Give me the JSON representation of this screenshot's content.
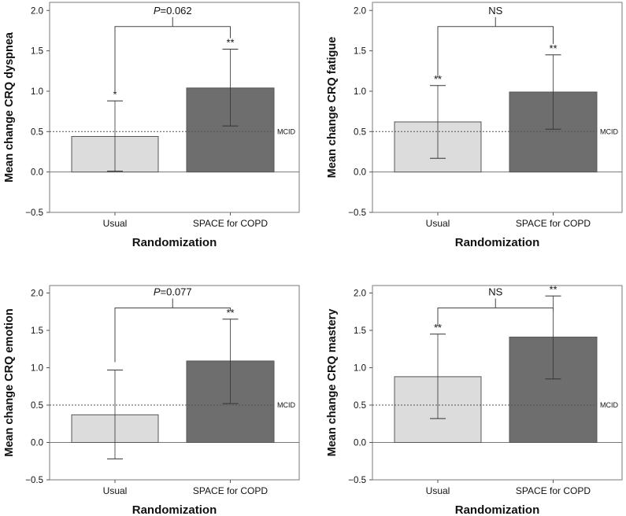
{
  "chart_data": [
    {
      "type": "bar",
      "ylabel": "Mean change CRQ dyspnea",
      "xlabel": "Randomization",
      "categories": [
        "Usual",
        "SPACE for COPD"
      ],
      "values": [
        0.44,
        1.04
      ],
      "error_low": [
        0.01,
        0.57
      ],
      "error_high": [
        0.88,
        1.52
      ],
      "bar_colors": [
        "#dcdcdc",
        "#6e6e6e"
      ],
      "significance": [
        "*",
        "**"
      ],
      "comparison": {
        "prefix": "P",
        "rest": "=0.062"
      },
      "mcid": {
        "value": 0.5,
        "label": "MCID"
      },
      "ylim": [
        -0.5,
        2.1
      ],
      "yticks": [
        -0.5,
        0.0,
        0.5,
        1.0,
        1.5,
        2.0
      ],
      "ytick_labels": [
        "−0.5",
        "0.0",
        "0.5",
        "1.0",
        "1.5",
        "2.0"
      ],
      "bracket_y": 1.8
    },
    {
      "type": "bar",
      "ylabel": "Mean change CRQ fatigue",
      "xlabel": "Randomization",
      "categories": [
        "Usual",
        "SPACE for COPD"
      ],
      "values": [
        0.62,
        0.99
      ],
      "error_low": [
        0.17,
        0.53
      ],
      "error_high": [
        1.07,
        1.45
      ],
      "bar_colors": [
        "#dcdcdc",
        "#6e6e6e"
      ],
      "significance": [
        "**",
        "**"
      ],
      "comparison": {
        "prefix": "",
        "rest": "NS"
      },
      "mcid": {
        "value": 0.5,
        "label": "MCID"
      },
      "ylim": [
        -0.5,
        2.1
      ],
      "yticks": [
        -0.5,
        0.0,
        0.5,
        1.0,
        1.5,
        2.0
      ],
      "ytick_labels": [
        "−0.5",
        "0.0",
        "0.5",
        "1.0",
        "1.5",
        "2.0"
      ],
      "bracket_y": 1.8
    },
    {
      "type": "bar",
      "ylabel": "Mean change CRQ emotion",
      "xlabel": "Randomization",
      "categories": [
        "Usual",
        "SPACE for COPD"
      ],
      "values": [
        0.37,
        1.09
      ],
      "error_low": [
        -0.22,
        0.52
      ],
      "error_high": [
        0.97,
        1.65
      ],
      "bar_colors": [
        "#dcdcdc",
        "#6e6e6e"
      ],
      "significance": [
        "",
        "**"
      ],
      "comparison": {
        "prefix": "P",
        "rest": "=0.077"
      },
      "mcid": {
        "value": 0.5,
        "label": "MCID"
      },
      "ylim": [
        -0.5,
        2.1
      ],
      "yticks": [
        -0.5,
        0.0,
        0.5,
        1.0,
        1.5,
        2.0
      ],
      "ytick_labels": [
        "−0.5",
        "0.0",
        "0.5",
        "1.0",
        "1.5",
        "2.0"
      ],
      "bracket_y": 1.8
    },
    {
      "type": "bar",
      "ylabel": "Mean change CRQ mastery",
      "xlabel": "Randomization",
      "categories": [
        "Usual",
        "SPACE for COPD"
      ],
      "values": [
        0.88,
        1.41
      ],
      "error_low": [
        0.32,
        0.85
      ],
      "error_high": [
        1.45,
        1.96
      ],
      "bar_colors": [
        "#dcdcdc",
        "#6e6e6e"
      ],
      "significance": [
        "**",
        "**"
      ],
      "comparison": {
        "prefix": "",
        "rest": "NS"
      },
      "mcid": {
        "value": 0.5,
        "label": "MCID"
      },
      "ylim": [
        -0.5,
        2.1
      ],
      "yticks": [
        -0.5,
        0.0,
        0.5,
        1.0,
        1.5,
        2.0
      ],
      "ytick_labels": [
        "−0.5",
        "0.0",
        "0.5",
        "1.0",
        "1.5",
        "2.0"
      ],
      "bracket_y": 1.8
    }
  ]
}
